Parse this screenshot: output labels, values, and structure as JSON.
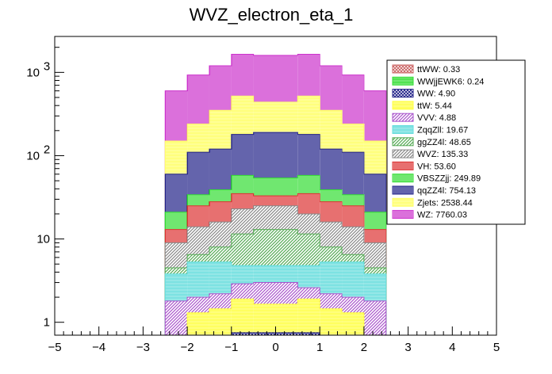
{
  "chart_data": {
    "type": "area",
    "title": "WVZ_electron_eta_1",
    "xlabel": "",
    "ylabel": "",
    "xlim": [
      -5,
      5
    ],
    "ylim": [
      0.7,
      2700
    ],
    "yscale": "log",
    "legend_position": "top-right",
    "x_ticks": [
      "−5",
      "−4",
      "−3",
      "−2",
      "−1",
      "0",
      "1",
      "2",
      "3",
      "4",
      "5"
    ],
    "x_tick_values": [
      -5,
      -4,
      -3,
      -2,
      -1,
      0,
      1,
      2,
      3,
      4,
      5
    ],
    "y_ticks": [
      {
        "value": 1,
        "base": "1",
        "exp": ""
      },
      {
        "value": 10,
        "base": "10",
        "exp": ""
      },
      {
        "value": 100,
        "base": "10",
        "exp": "2"
      },
      {
        "value": 1000,
        "base": "10",
        "exp": "3"
      }
    ],
    "bin_edges": [
      -2.5,
      -2.0,
      -1.5,
      -1.0,
      -0.5,
      0.0,
      0.5,
      1.0,
      1.5,
      2.0,
      2.5
    ],
    "cumulative_series": [
      {
        "name": "WZ: 7760.03",
        "color": "#cc33cc",
        "values": [
          600,
          930,
          1200,
          1650,
          1600,
          1600,
          1650,
          1200,
          930,
          600
        ]
      },
      {
        "name": "Zjets: 2538.44",
        "color": "#ffff66",
        "values": [
          150,
          240,
          350,
          520,
          440,
          440,
          520,
          350,
          240,
          150
        ]
      },
      {
        "name": "qqZZ4l: 754.13",
        "color": "#222288",
        "values": [
          60,
          110,
          120,
          180,
          190,
          190,
          180,
          120,
          110,
          60
        ]
      },
      {
        "name": "VBSZZjj: 249.89",
        "color": "#33dd33",
        "values": [
          21,
          34,
          39,
          58,
          54,
          54,
          58,
          39,
          34,
          21
        ]
      },
      {
        "name": "VH: 53.60",
        "color": "#dd3333",
        "values": [
          13,
          25,
          28,
          35,
          33,
          33,
          35,
          28,
          25,
          13
        ]
      },
      {
        "name": "WVZ: 135.33",
        "color": "#888888",
        "values": [
          9,
          14,
          16,
          23,
          25,
          25,
          20,
          16,
          14,
          9
        ]
      },
      {
        "name": "ggZZ4l: 48.65",
        "color": "#55aa55",
        "values": [
          4.5,
          6.5,
          8,
          11.5,
          13,
          13,
          11.5,
          8,
          6.5,
          4.5
        ]
      },
      {
        "name": "ZqqZll: 19.67",
        "color": "#66dddd",
        "values": [
          3.8,
          5.3,
          5.3,
          4.8,
          4.8,
          4.8,
          4.8,
          5.3,
          5.3,
          3.8
        ]
      },
      {
        "name": "VVV: 4.88",
        "color": "#aa55cc",
        "values": [
          1.8,
          2.0,
          2.2,
          2.9,
          3.0,
          3.0,
          2.6,
          2.2,
          2.0,
          1.8
        ]
      },
      {
        "name": "ttW: 5.44",
        "color": "#ffff44",
        "values": [
          0.7,
          1.3,
          1.45,
          1.9,
          1.65,
          1.65,
          1.9,
          1.45,
          1.3,
          0.7
        ]
      },
      {
        "name": "WW: 4.90",
        "color": "#222288",
        "values": [
          0.7,
          0.7,
          0.7,
          0.75,
          0.75,
          0.75,
          0.75,
          0.7,
          0.7,
          0.7
        ]
      },
      {
        "name": "WWjjEWK6: 0.24",
        "color": "#33dd33",
        "values": [
          0.7,
          0.7,
          0.7,
          0.7,
          0.7,
          0.7,
          0.7,
          0.7,
          0.7,
          0.7
        ]
      },
      {
        "name": "ttWW: 0.33",
        "color": "#cc6666",
        "values": [
          0.7,
          0.7,
          0.7,
          0.7,
          0.7,
          0.7,
          0.7,
          0.7,
          0.7,
          0.7
        ]
      }
    ],
    "legend": [
      {
        "label": "ttWW: 0.33",
        "color": "#cc6666",
        "pattern": "cross"
      },
      {
        "label": "WWjjEWK6: 0.24",
        "color": "#33dd33",
        "pattern": "solidish"
      },
      {
        "label": "WW: 4.90",
        "color": "#222288",
        "pattern": "cross"
      },
      {
        "label": "ttW: 5.44",
        "color": "#ffff44",
        "pattern": "solidish"
      },
      {
        "label": "VVV: 4.88",
        "color": "#aa55cc",
        "pattern": "diag"
      },
      {
        "label": "ZqqZll: 19.67",
        "color": "#66dddd",
        "pattern": "solidish"
      },
      {
        "label": "ggZZ4l: 48.65",
        "color": "#55aa55",
        "pattern": "diag"
      },
      {
        "label": "WVZ: 135.33",
        "color": "#888888",
        "pattern": "diag"
      },
      {
        "label": "VH: 53.60",
        "color": "#dd3333",
        "pattern": "vert"
      },
      {
        "label": "VBSZZjj: 249.89",
        "color": "#33dd33",
        "pattern": "vert"
      },
      {
        "label": "qqZZ4l: 754.13",
        "color": "#222288",
        "pattern": "vert"
      },
      {
        "label": "Zjets: 2538.44",
        "color": "#ffff66",
        "pattern": "solidish"
      },
      {
        "label": "WZ: 7760.03",
        "color": "#cc33cc",
        "pattern": "vert"
      }
    ]
  }
}
